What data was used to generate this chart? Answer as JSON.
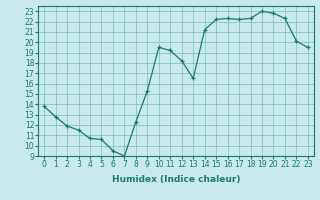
{
  "x": [
    0,
    1,
    2,
    3,
    4,
    5,
    6,
    7,
    8,
    9,
    10,
    11,
    12,
    13,
    14,
    15,
    16,
    17,
    18,
    19,
    20,
    21,
    22,
    23
  ],
  "y": [
    13.8,
    12.8,
    11.9,
    11.5,
    10.7,
    10.6,
    9.5,
    9.0,
    12.3,
    15.3,
    19.5,
    19.2,
    18.2,
    16.5,
    21.2,
    22.2,
    22.3,
    22.2,
    22.3,
    23.0,
    22.8,
    22.3,
    20.1,
    19.5
  ],
  "xlabel": "Humidex (Indice chaleur)",
  "xlim": [
    -0.5,
    23.5
  ],
  "ylim": [
    9,
    23.5
  ],
  "yticks": [
    9,
    10,
    11,
    12,
    13,
    14,
    15,
    16,
    17,
    18,
    19,
    20,
    21,
    22,
    23
  ],
  "xticks": [
    0,
    1,
    2,
    3,
    4,
    5,
    6,
    7,
    8,
    9,
    10,
    11,
    12,
    13,
    14,
    15,
    16,
    17,
    18,
    19,
    20,
    21,
    22,
    23
  ],
  "line_color": "#1a7a6e",
  "marker": "+",
  "bg_color": "#c8eaea",
  "grid_color": "#7bbcbc",
  "label_fontsize": 6.5,
  "tick_fontsize": 5.5
}
